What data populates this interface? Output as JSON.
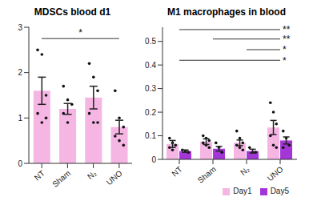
{
  "chart_data": [
    {
      "type": "bar",
      "title": "MDSCs blood d1",
      "categories": [
        "NT",
        "Sham",
        "N₂",
        "UNO"
      ],
      "values": [
        1.6,
        1.2,
        1.45,
        0.8
      ],
      "errors": [
        0.3,
        0.12,
        0.25,
        0.15
      ],
      "points": [
        [
          2.5,
          2.4,
          1.5,
          1.1,
          0.9,
          1.0
        ],
        [
          1.7,
          1.4,
          1.3,
          1.1,
          0.9
        ],
        [
          2.2,
          1.9,
          1.6,
          1.1,
          0.9,
          0.9
        ],
        [
          1.6,
          1.0,
          0.8,
          0.6,
          0.5,
          0.4
        ]
      ],
      "color": "#f6b6e4",
      "ylim": [
        0,
        3
      ],
      "yticks": [
        0,
        1,
        2,
        3
      ],
      "annotations": [
        {
          "from": "NT",
          "to": "UNO",
          "y": 2.75,
          "label": "*"
        }
      ]
    },
    {
      "type": "bar",
      "title": "M1 macrophages in blood",
      "categories": [
        "NT",
        "Sham",
        "N₂",
        "UNO"
      ],
      "series": [
        {
          "name": "Day1",
          "color": "#f6b6e4",
          "values": [
            0.065,
            0.075,
            0.07,
            0.135
          ],
          "errors": [
            0.015,
            0.012,
            0.012,
            0.03
          ],
          "points": [
            [
              0.09,
              0.07,
              0.06,
              0.05,
              0.04
            ],
            [
              0.1,
              0.09,
              0.08,
              0.07,
              0.06,
              0.05
            ],
            [
              0.12,
              0.09,
              0.07,
              0.06,
              0.05,
              0.04
            ],
            [
              0.24,
              0.2,
              0.15,
              0.1,
              0.06,
              0.05
            ]
          ]
        },
        {
          "name": "Day5",
          "color": "#a436d8",
          "values": [
            0.035,
            0.045,
            0.035,
            0.08
          ],
          "errors": [
            0.005,
            0.01,
            0.008,
            0.015
          ],
          "points": [
            [
              0.04,
              0.035,
              0.03
            ],
            [
              0.07,
              0.05,
              0.03
            ],
            [
              0.05,
              0.03,
              0.03
            ],
            [
              0.12,
              0.09,
              0.06,
              0.05
            ]
          ]
        }
      ],
      "ylim": [
        0,
        0.56
      ],
      "yticks": [
        0,
        0.1,
        0.2,
        0.3,
        0.4,
        0.5
      ],
      "legend": "bottom",
      "annotations": [
        {
          "from": "NT",
          "to": "UNO",
          "y": 0.55,
          "label": "**"
        },
        {
          "from": "Sham",
          "to": "UNO",
          "y": 0.51,
          "label": "**"
        },
        {
          "from": "N₂",
          "to": "UNO",
          "y": 0.465,
          "label": "*"
        },
        {
          "from": "NT",
          "to": "UNO",
          "y": 0.42,
          "label": "*"
        }
      ]
    }
  ]
}
